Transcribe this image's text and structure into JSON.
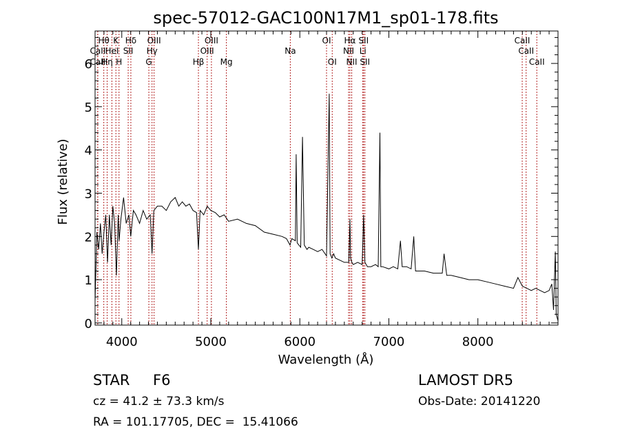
{
  "chart_data": {
    "type": "line",
    "title": "spec-57012-GAC100N17M1_sp01-178.fits",
    "xlabel": "Wavelength (Å)",
    "ylabel": "Flux (relative)",
    "xlim": [
      3700,
      8900
    ],
    "ylim": [
      -0.05,
      6.75
    ],
    "x_ticks": [
      4000,
      5000,
      6000,
      7000,
      8000
    ],
    "y_ticks": [
      0,
      1,
      2,
      3,
      4,
      5,
      6
    ],
    "grid": false,
    "series": [
      {
        "color": "#000000",
        "x": [
          3700,
          3720,
          3740,
          3760,
          3780,
          3800,
          3820,
          3840,
          3860,
          3880,
          3900,
          3920,
          3940,
          3960,
          3970,
          3990,
          4020,
          4050,
          4080,
          4101,
          4130,
          4160,
          4200,
          4240,
          4280,
          4320,
          4340,
          4360,
          4400,
          4450,
          4500,
          4550,
          4600,
          4640,
          4680,
          4720,
          4760,
          4800,
          4840,
          4861,
          4880,
          4920,
          4960,
          5000,
          5050,
          5100,
          5150,
          5200,
          5300,
          5400,
          5500,
          5600,
          5700,
          5800,
          5850,
          5890,
          5910,
          5950,
          5959,
          5970,
          6010,
          6030,
          6050,
          6080,
          6100,
          6150,
          6200,
          6250,
          6300,
          6330,
          6340,
          6350,
          6360,
          6380,
          6400,
          6450,
          6500,
          6550,
          6563,
          6570,
          6585,
          6600,
          6650,
          6700,
          6716,
          6731,
          6760,
          6800,
          6850,
          6880,
          6900,
          6910,
          6930,
          7000,
          7050,
          7100,
          7130,
          7150,
          7200,
          7250,
          7280,
          7300,
          7400,
          7500,
          7600,
          7620,
          7650,
          7700,
          7800,
          7900,
          8000,
          8100,
          8200,
          8300,
          8400,
          8450,
          8500,
          8550,
          8600,
          8650,
          8700,
          8750,
          8800,
          8830,
          8850,
          8870,
          8880,
          8900
        ],
        "y": [
          0.5,
          2.1,
          1.7,
          2.3,
          1.6,
          2.1,
          2.5,
          1.4,
          2.5,
          1.8,
          2.7,
          2.3,
          1.1,
          2.5,
          1.9,
          2.4,
          2.9,
          2.3,
          2.5,
          2.0,
          2.6,
          2.5,
          2.3,
          2.6,
          2.4,
          2.5,
          1.6,
          2.6,
          2.7,
          2.7,
          2.6,
          2.8,
          2.9,
          2.7,
          2.8,
          2.7,
          2.75,
          2.6,
          2.55,
          1.7,
          2.6,
          2.5,
          2.7,
          2.6,
          2.55,
          2.45,
          2.5,
          2.35,
          2.4,
          2.3,
          2.25,
          2.1,
          2.05,
          2.0,
          1.95,
          1.8,
          1.95,
          1.9,
          3.9,
          1.85,
          1.75,
          4.3,
          1.8,
          1.7,
          1.75,
          1.7,
          1.65,
          1.7,
          1.55,
          5.3,
          1.6,
          1.55,
          1.5,
          1.6,
          1.5,
          1.45,
          1.4,
          1.4,
          2.4,
          1.5,
          1.4,
          1.35,
          1.4,
          1.35,
          2.5,
          1.4,
          1.3,
          1.3,
          1.35,
          1.3,
          4.4,
          1.3,
          1.3,
          1.25,
          1.3,
          1.25,
          1.9,
          1.3,
          1.3,
          1.25,
          2.0,
          1.2,
          1.2,
          1.15,
          1.15,
          1.6,
          1.1,
          1.1,
          1.05,
          1.0,
          1.0,
          0.95,
          0.9,
          0.85,
          0.8,
          1.05,
          0.85,
          0.8,
          0.75,
          0.8,
          0.75,
          0.7,
          0.75,
          0.9,
          0.3,
          1.65,
          0.2,
          0.05
        ]
      }
    ],
    "line_markers": [
      {
        "label": "Hθ",
        "wavelength": 3798,
        "row": 1
      },
      {
        "label": "CaII",
        "wavelength": 3730,
        "row": 2
      },
      {
        "label": "Hη",
        "wavelength": 3836,
        "row": 3
      },
      {
        "label": "CaII",
        "wavelength": 3730,
        "row": 3
      },
      {
        "label": "K",
        "wavelength": 3934,
        "row": 1
      },
      {
        "label": "HeI",
        "wavelength": 3889,
        "row": 2
      },
      {
        "label": "H",
        "wavelength": 3969,
        "row": 3
      },
      {
        "label": "Hδ",
        "wavelength": 4102,
        "row": 1
      },
      {
        "label": "SII",
        "wavelength": 4072,
        "row": 2
      },
      {
        "label": "OIII",
        "wavelength": 4363,
        "row": 1
      },
      {
        "label": "Hγ",
        "wavelength": 4340,
        "row": 2
      },
      {
        "label": "G",
        "wavelength": 4304,
        "row": 3
      },
      {
        "label": "Hβ",
        "wavelength": 4861,
        "row": 3
      },
      {
        "label": "OIII",
        "wavelength": 5007,
        "row": 1
      },
      {
        "label": "OIII",
        "wavelength": 4959,
        "row": 2
      },
      {
        "label": "Mg",
        "wavelength": 5175,
        "row": 3
      },
      {
        "label": "Na",
        "wavelength": 5893,
        "row": 2
      },
      {
        "label": "OI",
        "wavelength": 6300,
        "row": 1
      },
      {
        "label": "OI",
        "wavelength": 6364,
        "row": 3
      },
      {
        "label": "Hα",
        "wavelength": 6563,
        "row": 1
      },
      {
        "label": "NII",
        "wavelength": 6548,
        "row": 2
      },
      {
        "label": "NII",
        "wavelength": 6583,
        "row": 3
      },
      {
        "label": "SII",
        "wavelength": 6716,
        "row": 1
      },
      {
        "label": "Li",
        "wavelength": 6708,
        "row": 2
      },
      {
        "label": "SII",
        "wavelength": 6731,
        "row": 3
      },
      {
        "label": "CaII",
        "wavelength": 8498,
        "row": 1
      },
      {
        "label": "CaII",
        "wavelength": 8542,
        "row": 2
      },
      {
        "label": "CaII",
        "wavelength": 8662,
        "row": 3
      }
    ],
    "marker_color": "#b22222"
  },
  "footer": {
    "object_class": "STAR",
    "subclass": "F6",
    "survey": "LAMOST DR5",
    "redshift": "cz = 41.2 ± 73.3 km/s",
    "obs_date": "Obs-Date: 20141220",
    "coords": "RA = 101.17705, DEC =  15.41066"
  }
}
